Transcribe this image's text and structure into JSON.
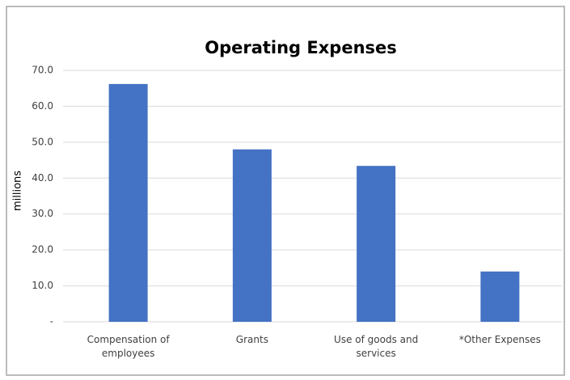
{
  "chart_data": {
    "type": "bar",
    "title": "Operating Expenses",
    "y_label": "millions",
    "categories": [
      "Compensation of employees",
      "Grants",
      "Use of goods and services",
      "*Other Expenses"
    ],
    "values": [
      66.2,
      48.0,
      43.4,
      14.0
    ],
    "color": "#4472c4",
    "ylim": [
      0,
      70
    ],
    "yticks": [
      {
        "value": 0,
        "label": "-"
      },
      {
        "value": 10,
        "label": "10.0"
      },
      {
        "value": 20,
        "label": "20.0"
      },
      {
        "value": 30,
        "label": "30.0"
      },
      {
        "value": 40,
        "label": "40.0"
      },
      {
        "value": 50,
        "label": "50.0"
      },
      {
        "value": 60,
        "label": "60.0"
      },
      {
        "value": 70,
        "label": "70.0"
      }
    ],
    "grid": true
  }
}
